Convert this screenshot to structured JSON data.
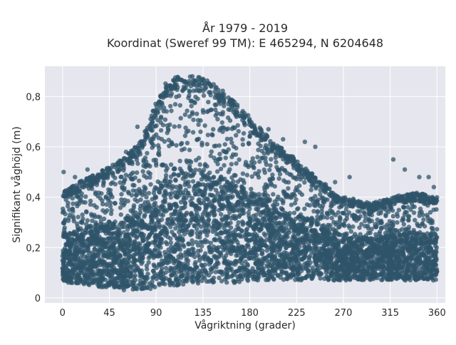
{
  "chart_data": {
    "type": "scatter",
    "title": [
      "År 1979 - 2019",
      "Koordinat (Sweref 99 TM): E 465294, N 6204648"
    ],
    "xlabel": "Vågriktning (grader)",
    "ylabel": "Signifikant våghöjd (m)",
    "xlim": [
      -17,
      368
    ],
    "ylim": [
      -0.02,
      0.92
    ],
    "x_ticks": [
      0,
      45,
      90,
      135,
      180,
      225,
      270,
      315,
      360
    ],
    "x_tick_labels": [
      "0",
      "45",
      "90",
      "135",
      "180",
      "225",
      "270",
      "315",
      "360"
    ],
    "y_ticks": [
      0,
      0.2,
      0.4,
      0.6,
      0.8
    ],
    "y_tick_labels": [
      "0",
      "0,2",
      "0,4",
      "0,6",
      "0,8"
    ],
    "grid": true,
    "marker_color": "#2f5469",
    "background_color": "#e6e6ee",
    "x_range": [
      0,
      360
    ],
    "y_range": [
      0.03,
      0.88
    ],
    "envelope": [
      {
        "x": 0,
        "y_min": 0.06,
        "y_max": 0.42
      },
      {
        "x": 20,
        "y_min": 0.05,
        "y_max": 0.47
      },
      {
        "x": 45,
        "y_min": 0.04,
        "y_max": 0.52
      },
      {
        "x": 60,
        "y_min": 0.03,
        "y_max": 0.56
      },
      {
        "x": 75,
        "y_min": 0.03,
        "y_max": 0.62
      },
      {
        "x": 90,
        "y_min": 0.04,
        "y_max": 0.78
      },
      {
        "x": 100,
        "y_min": 0.05,
        "y_max": 0.86
      },
      {
        "x": 110,
        "y_min": 0.05,
        "y_max": 0.88
      },
      {
        "x": 135,
        "y_min": 0.06,
        "y_max": 0.88
      },
      {
        "x": 150,
        "y_min": 0.06,
        "y_max": 0.84
      },
      {
        "x": 180,
        "y_min": 0.06,
        "y_max": 0.72
      },
      {
        "x": 200,
        "y_min": 0.07,
        "y_max": 0.63
      },
      {
        "x": 225,
        "y_min": 0.07,
        "y_max": 0.55
      },
      {
        "x": 250,
        "y_min": 0.07,
        "y_max": 0.46
      },
      {
        "x": 270,
        "y_min": 0.07,
        "y_max": 0.4
      },
      {
        "x": 300,
        "y_min": 0.07,
        "y_max": 0.38
      },
      {
        "x": 315,
        "y_min": 0.07,
        "y_max": 0.4
      },
      {
        "x": 340,
        "y_min": 0.07,
        "y_max": 0.42
      },
      {
        "x": 360,
        "y_min": 0.07,
        "y_max": 0.4
      }
    ],
    "outliers": [
      {
        "x": 1,
        "y": 0.5
      },
      {
        "x": 12,
        "y": 0.48
      },
      {
        "x": 24,
        "y": 0.51
      },
      {
        "x": 33,
        "y": 0.47
      },
      {
        "x": 61,
        "y": 0.58
      },
      {
        "x": 72,
        "y": 0.68
      },
      {
        "x": 198,
        "y": 0.67
      },
      {
        "x": 212,
        "y": 0.63
      },
      {
        "x": 233,
        "y": 0.62
      },
      {
        "x": 243,
        "y": 0.6
      },
      {
        "x": 262,
        "y": 0.46
      },
      {
        "x": 276,
        "y": 0.48
      },
      {
        "x": 318,
        "y": 0.55
      },
      {
        "x": 329,
        "y": 0.51
      },
      {
        "x": 343,
        "y": 0.48
      },
      {
        "x": 352,
        "y": 0.48
      },
      {
        "x": 357,
        "y": 0.44
      }
    ]
  }
}
